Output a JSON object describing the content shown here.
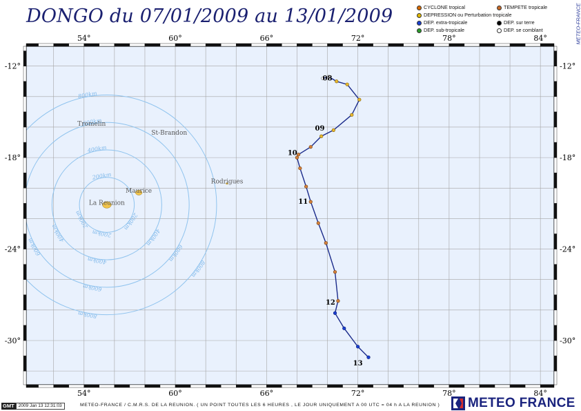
{
  "header": {
    "title": "DONGO du 07/01/2009 au 13/01/2009",
    "side_credit": "METEO-FRANCE"
  },
  "legend": [
    {
      "label": "CYCLONE tropical",
      "color": "#d96a00"
    },
    {
      "label": "TEMPETE tropicale",
      "color": "#c86a28"
    },
    {
      "label": "DEPRESSION ou Perturbation tropicale",
      "color": "#e0b800"
    },
    {
      "label": "DEP. extra-tropicale",
      "color": "#1a3fd0"
    },
    {
      "label": "DEP. sur terre",
      "color": "#000000"
    },
    {
      "label": "DEP. sub-tropicale",
      "color": "#2a9a2a"
    },
    {
      "label": "DEP. se comblant",
      "color": "#ffffff"
    }
  ],
  "axes": {
    "lon_labels": [
      "54°",
      "60°",
      "66°",
      "72°",
      "78°",
      "84°"
    ],
    "lon_values": [
      54,
      60,
      66,
      72,
      78,
      84
    ],
    "lat_labels": [
      "-12°",
      "-18°",
      "-24°",
      "-30°"
    ],
    "lat_values": [
      -12,
      -18,
      -24,
      -30
    ],
    "lon_range": [
      50.2,
      84.9
    ],
    "lat_range": [
      -32.9,
      -10.7
    ]
  },
  "places": [
    {
      "name": "Tromelin",
      "lon": 54.5,
      "lat": -15.9
    },
    {
      "name": "St-Brandon",
      "lon": 59.6,
      "lat": -16.5
    },
    {
      "name": "Rodrigues",
      "lon": 63.4,
      "lat": -19.7
    },
    {
      "name": "Maurice",
      "lon": 57.6,
      "lat": -20.3
    },
    {
      "name": "La Reunion",
      "lon": 55.5,
      "lat": -21.1
    }
  ],
  "islands": [
    {
      "name": "La Reunion",
      "lon": 55.5,
      "lat": -21.1,
      "size": 4
    },
    {
      "name": "Maurice",
      "lon": 57.6,
      "lat": -20.3,
      "size": 3
    },
    {
      "name": "Rodrigues",
      "lon": 63.4,
      "lat": -19.7,
      "size": 1
    }
  ],
  "range_rings": {
    "center": {
      "lon": 55.5,
      "lat": -21.1
    },
    "labels": [
      "200km",
      "400km",
      "600km",
      "800km"
    ],
    "km": [
      200,
      400,
      600,
      800
    ]
  },
  "track": {
    "points": [
      {
        "lon": 69.7,
        "lat": -12.8,
        "cat": "se-comblant"
      },
      {
        "lon": 70.1,
        "lat": -12.7,
        "cat": "se-comblant"
      },
      {
        "lon": 70.6,
        "lat": -13.0,
        "cat": "depression"
      },
      {
        "lon": 71.3,
        "lat": -13.2,
        "cat": "depression"
      },
      {
        "lon": 72.1,
        "lat": -14.2,
        "cat": "depression"
      },
      {
        "lon": 71.6,
        "lat": -15.2,
        "cat": "depression"
      },
      {
        "lon": 70.4,
        "lat": -16.2,
        "cat": "depression"
      },
      {
        "lon": 69.6,
        "lat": -16.6,
        "cat": "depression"
      },
      {
        "lon": 68.9,
        "lat": -17.3,
        "cat": "tempete"
      },
      {
        "lon": 68.1,
        "lat": -17.8,
        "cat": "tempete"
      },
      {
        "lon": 68.0,
        "lat": -18.0,
        "cat": "tempete"
      },
      {
        "lon": 68.2,
        "lat": -18.7,
        "cat": "tempete"
      },
      {
        "lon": 68.6,
        "lat": -19.9,
        "cat": "tempete"
      },
      {
        "lon": 68.9,
        "lat": -20.9,
        "cat": "tempete"
      },
      {
        "lon": 69.4,
        "lat": -22.3,
        "cat": "tempete"
      },
      {
        "lon": 69.9,
        "lat": -23.6,
        "cat": "tempete"
      },
      {
        "lon": 70.5,
        "lat": -25.5,
        "cat": "tempete"
      },
      {
        "lon": 70.7,
        "lat": -27.4,
        "cat": "tempete"
      },
      {
        "lon": 70.5,
        "lat": -28.2,
        "cat": "extra-tropicale"
      },
      {
        "lon": 71.1,
        "lat": -29.2,
        "cat": "extra-tropicale"
      },
      {
        "lon": 72.0,
        "lat": -30.4,
        "cat": "extra-tropicale"
      },
      {
        "lon": 72.7,
        "lat": -31.1,
        "cat": "extra-tropicale"
      }
    ],
    "day_labels": [
      {
        "text": "08",
        "lon": 70.0,
        "lat": -12.8
      },
      {
        "text": "09",
        "lon": 69.5,
        "lat": -16.1
      },
      {
        "text": "10",
        "lon": 67.7,
        "lat": -17.7
      },
      {
        "text": "11",
        "lon": 68.4,
        "lat": -20.9
      },
      {
        "text": "12",
        "lon": 70.2,
        "lat": -27.5
      },
      {
        "text": "13",
        "lon": 72.0,
        "lat": -31.5
      }
    ]
  },
  "footer": {
    "gmt": "GMT",
    "stamp": "2009 Jan 13 12:31:03",
    "text": "METEO-FRANCE / C.M.R.S. DE LA REUNION.  ( UN POINT TOUTES LES 6 HEURES , LE JOUR UNIQUEMENT A 00 UTC = 04 h A LA REUNION )",
    "logo": "METEO FRANCE"
  }
}
